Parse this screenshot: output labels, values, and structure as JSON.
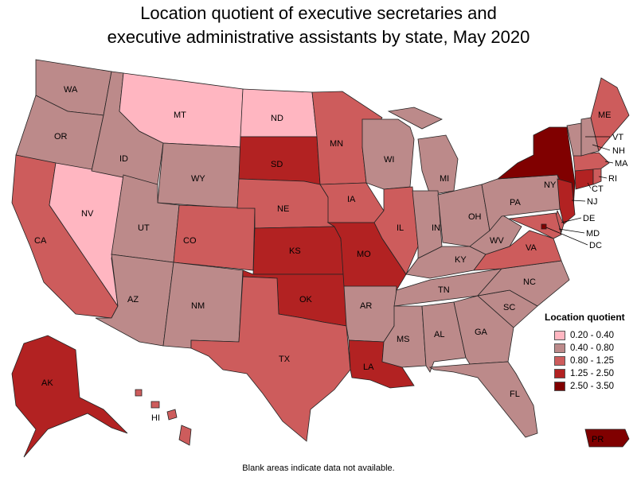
{
  "title": {
    "line1": "Location quotient of executive secretaries and",
    "line2": "executive administrative assistants by state, May 2020"
  },
  "legend": {
    "title": "Location quotient",
    "bins": [
      {
        "label": "0.20 - 0.40",
        "color": "#ffb6c1"
      },
      {
        "label": "0.40 - 0.80",
        "color": "#bc8a8a"
      },
      {
        "label": "0.80 - 1.25",
        "color": "#cd5c5c"
      },
      {
        "label": "1.25 - 2.50",
        "color": "#b22222"
      },
      {
        "label": "2.50 - 3.50",
        "color": "#800000"
      }
    ]
  },
  "states": [
    {
      "abbr": "WA",
      "bin": 1
    },
    {
      "abbr": "OR",
      "bin": 1
    },
    {
      "abbr": "CA",
      "bin": 2
    },
    {
      "abbr": "NV",
      "bin": 0
    },
    {
      "abbr": "ID",
      "bin": 1
    },
    {
      "abbr": "MT",
      "bin": 0
    },
    {
      "abbr": "WY",
      "bin": 1
    },
    {
      "abbr": "UT",
      "bin": 1
    },
    {
      "abbr": "AZ",
      "bin": 1
    },
    {
      "abbr": "CO",
      "bin": 2
    },
    {
      "abbr": "NM",
      "bin": 1
    },
    {
      "abbr": "ND",
      "bin": 0
    },
    {
      "abbr": "SD",
      "bin": 3
    },
    {
      "abbr": "NE",
      "bin": 2
    },
    {
      "abbr": "KS",
      "bin": 3
    },
    {
      "abbr": "OK",
      "bin": 3
    },
    {
      "abbr": "TX",
      "bin": 2
    },
    {
      "abbr": "MN",
      "bin": 2
    },
    {
      "abbr": "IA",
      "bin": 2
    },
    {
      "abbr": "MO",
      "bin": 3
    },
    {
      "abbr": "AR",
      "bin": 1
    },
    {
      "abbr": "LA",
      "bin": 3
    },
    {
      "abbr": "WI",
      "bin": 1
    },
    {
      "abbr": "IL",
      "bin": 2
    },
    {
      "abbr": "MI",
      "bin": 1
    },
    {
      "abbr": "IN",
      "bin": 1
    },
    {
      "abbr": "OH",
      "bin": 1
    },
    {
      "abbr": "KY",
      "bin": 1
    },
    {
      "abbr": "TN",
      "bin": 1
    },
    {
      "abbr": "MS",
      "bin": 1
    },
    {
      "abbr": "AL",
      "bin": 1
    },
    {
      "abbr": "GA",
      "bin": 1
    },
    {
      "abbr": "FL",
      "bin": 1
    },
    {
      "abbr": "SC",
      "bin": 1
    },
    {
      "abbr": "NC",
      "bin": 1
    },
    {
      "abbr": "VA",
      "bin": 2
    },
    {
      "abbr": "WV",
      "bin": 1
    },
    {
      "abbr": "PA",
      "bin": 1
    },
    {
      "abbr": "NY",
      "bin": 4
    },
    {
      "abbr": "VT",
      "bin": 1
    },
    {
      "abbr": "NH",
      "bin": 1
    },
    {
      "abbr": "ME",
      "bin": 2
    },
    {
      "abbr": "MA",
      "bin": 2
    },
    {
      "abbr": "RI",
      "bin": 2
    },
    {
      "abbr": "CT",
      "bin": 3
    },
    {
      "abbr": "NJ",
      "bin": 3
    },
    {
      "abbr": "DE",
      "bin": 2
    },
    {
      "abbr": "MD",
      "bin": 2
    },
    {
      "abbr": "DC",
      "bin": 4
    },
    {
      "abbr": "AK",
      "bin": 3
    },
    {
      "abbr": "HI",
      "bin": 2
    },
    {
      "abbr": "PR",
      "bin": 4
    }
  ],
  "footnote": "Blank areas indicate data not available."
}
